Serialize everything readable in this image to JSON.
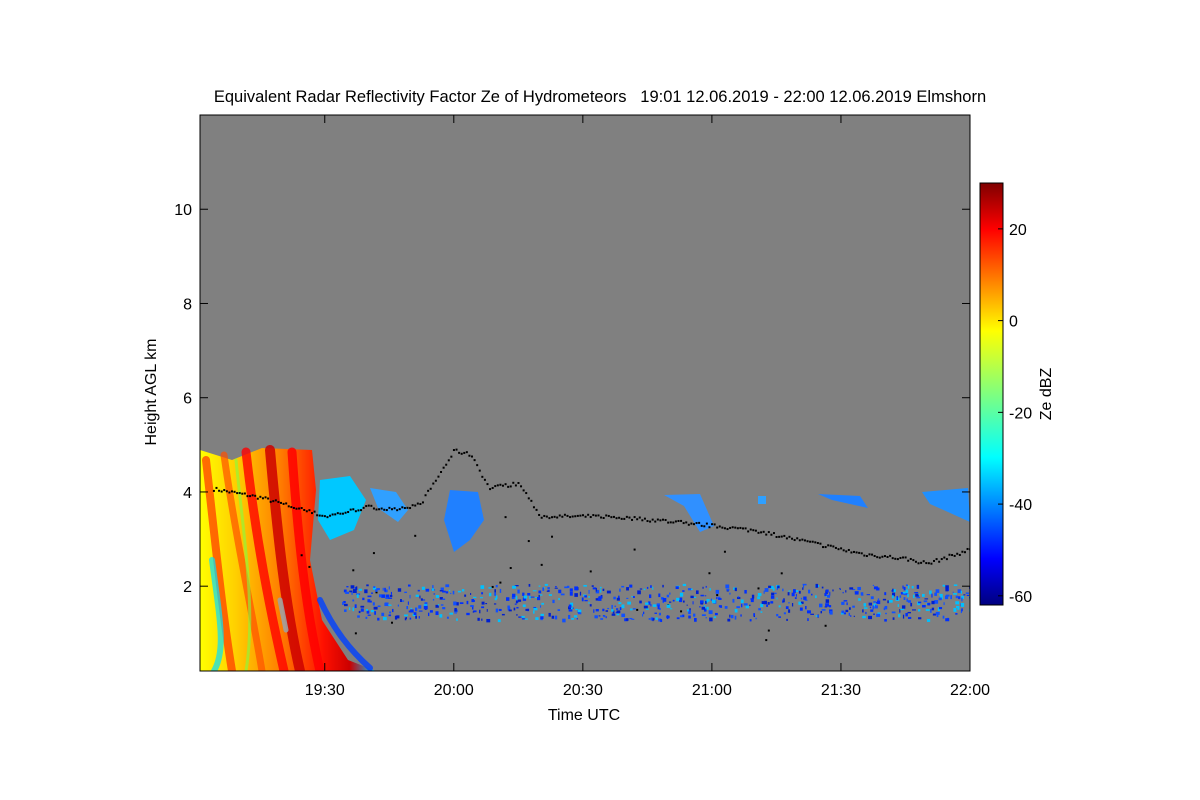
{
  "chart_data": {
    "type": "heatmap",
    "title": "Equivalent Radar Reflectivity Factor Ze of Hydrometeors   19:01 12.06.2019 - 22:00 12.06.2019 Elmshorn",
    "xlabel": "Time UTC",
    "ylabel": "Height AGL km",
    "x_ticks": [
      "19:30",
      "20:00",
      "20:30",
      "21:00",
      "21:30",
      "22:00"
    ],
    "x_tick_minutes": [
      30,
      60,
      90,
      120,
      150,
      180
    ],
    "xlim_minutes_after_19": [
      1,
      180
    ],
    "y_ticks": [
      2,
      4,
      6,
      8,
      10
    ],
    "ylim": [
      0.2,
      12.0
    ],
    "colorbar": {
      "label": "Ze dBZ",
      "ticks": [
        20,
        0,
        -20,
        -40,
        -60
      ],
      "range": [
        -62,
        30
      ],
      "colormap": "jet"
    },
    "background_color": "#808080",
    "cloud_base_markers_color": "#000000",
    "features": [
      {
        "name": "precipitation",
        "time": [
          "19:01",
          "19:41"
        ],
        "height_km": [
          0.2,
          5.0
        ],
        "ze_dbz": [
          -40,
          28
        ]
      },
      {
        "name": "cloud base line",
        "time": [
          "19:01",
          "22:00"
        ],
        "height_km": [
          2.6,
          5.3
        ]
      },
      {
        "name": "weak echoes",
        "time": [
          "19:33",
          "22:00"
        ],
        "height_km": [
          1.5,
          4.0
        ],
        "ze_dbz": [
          -50,
          -20
        ]
      }
    ]
  }
}
